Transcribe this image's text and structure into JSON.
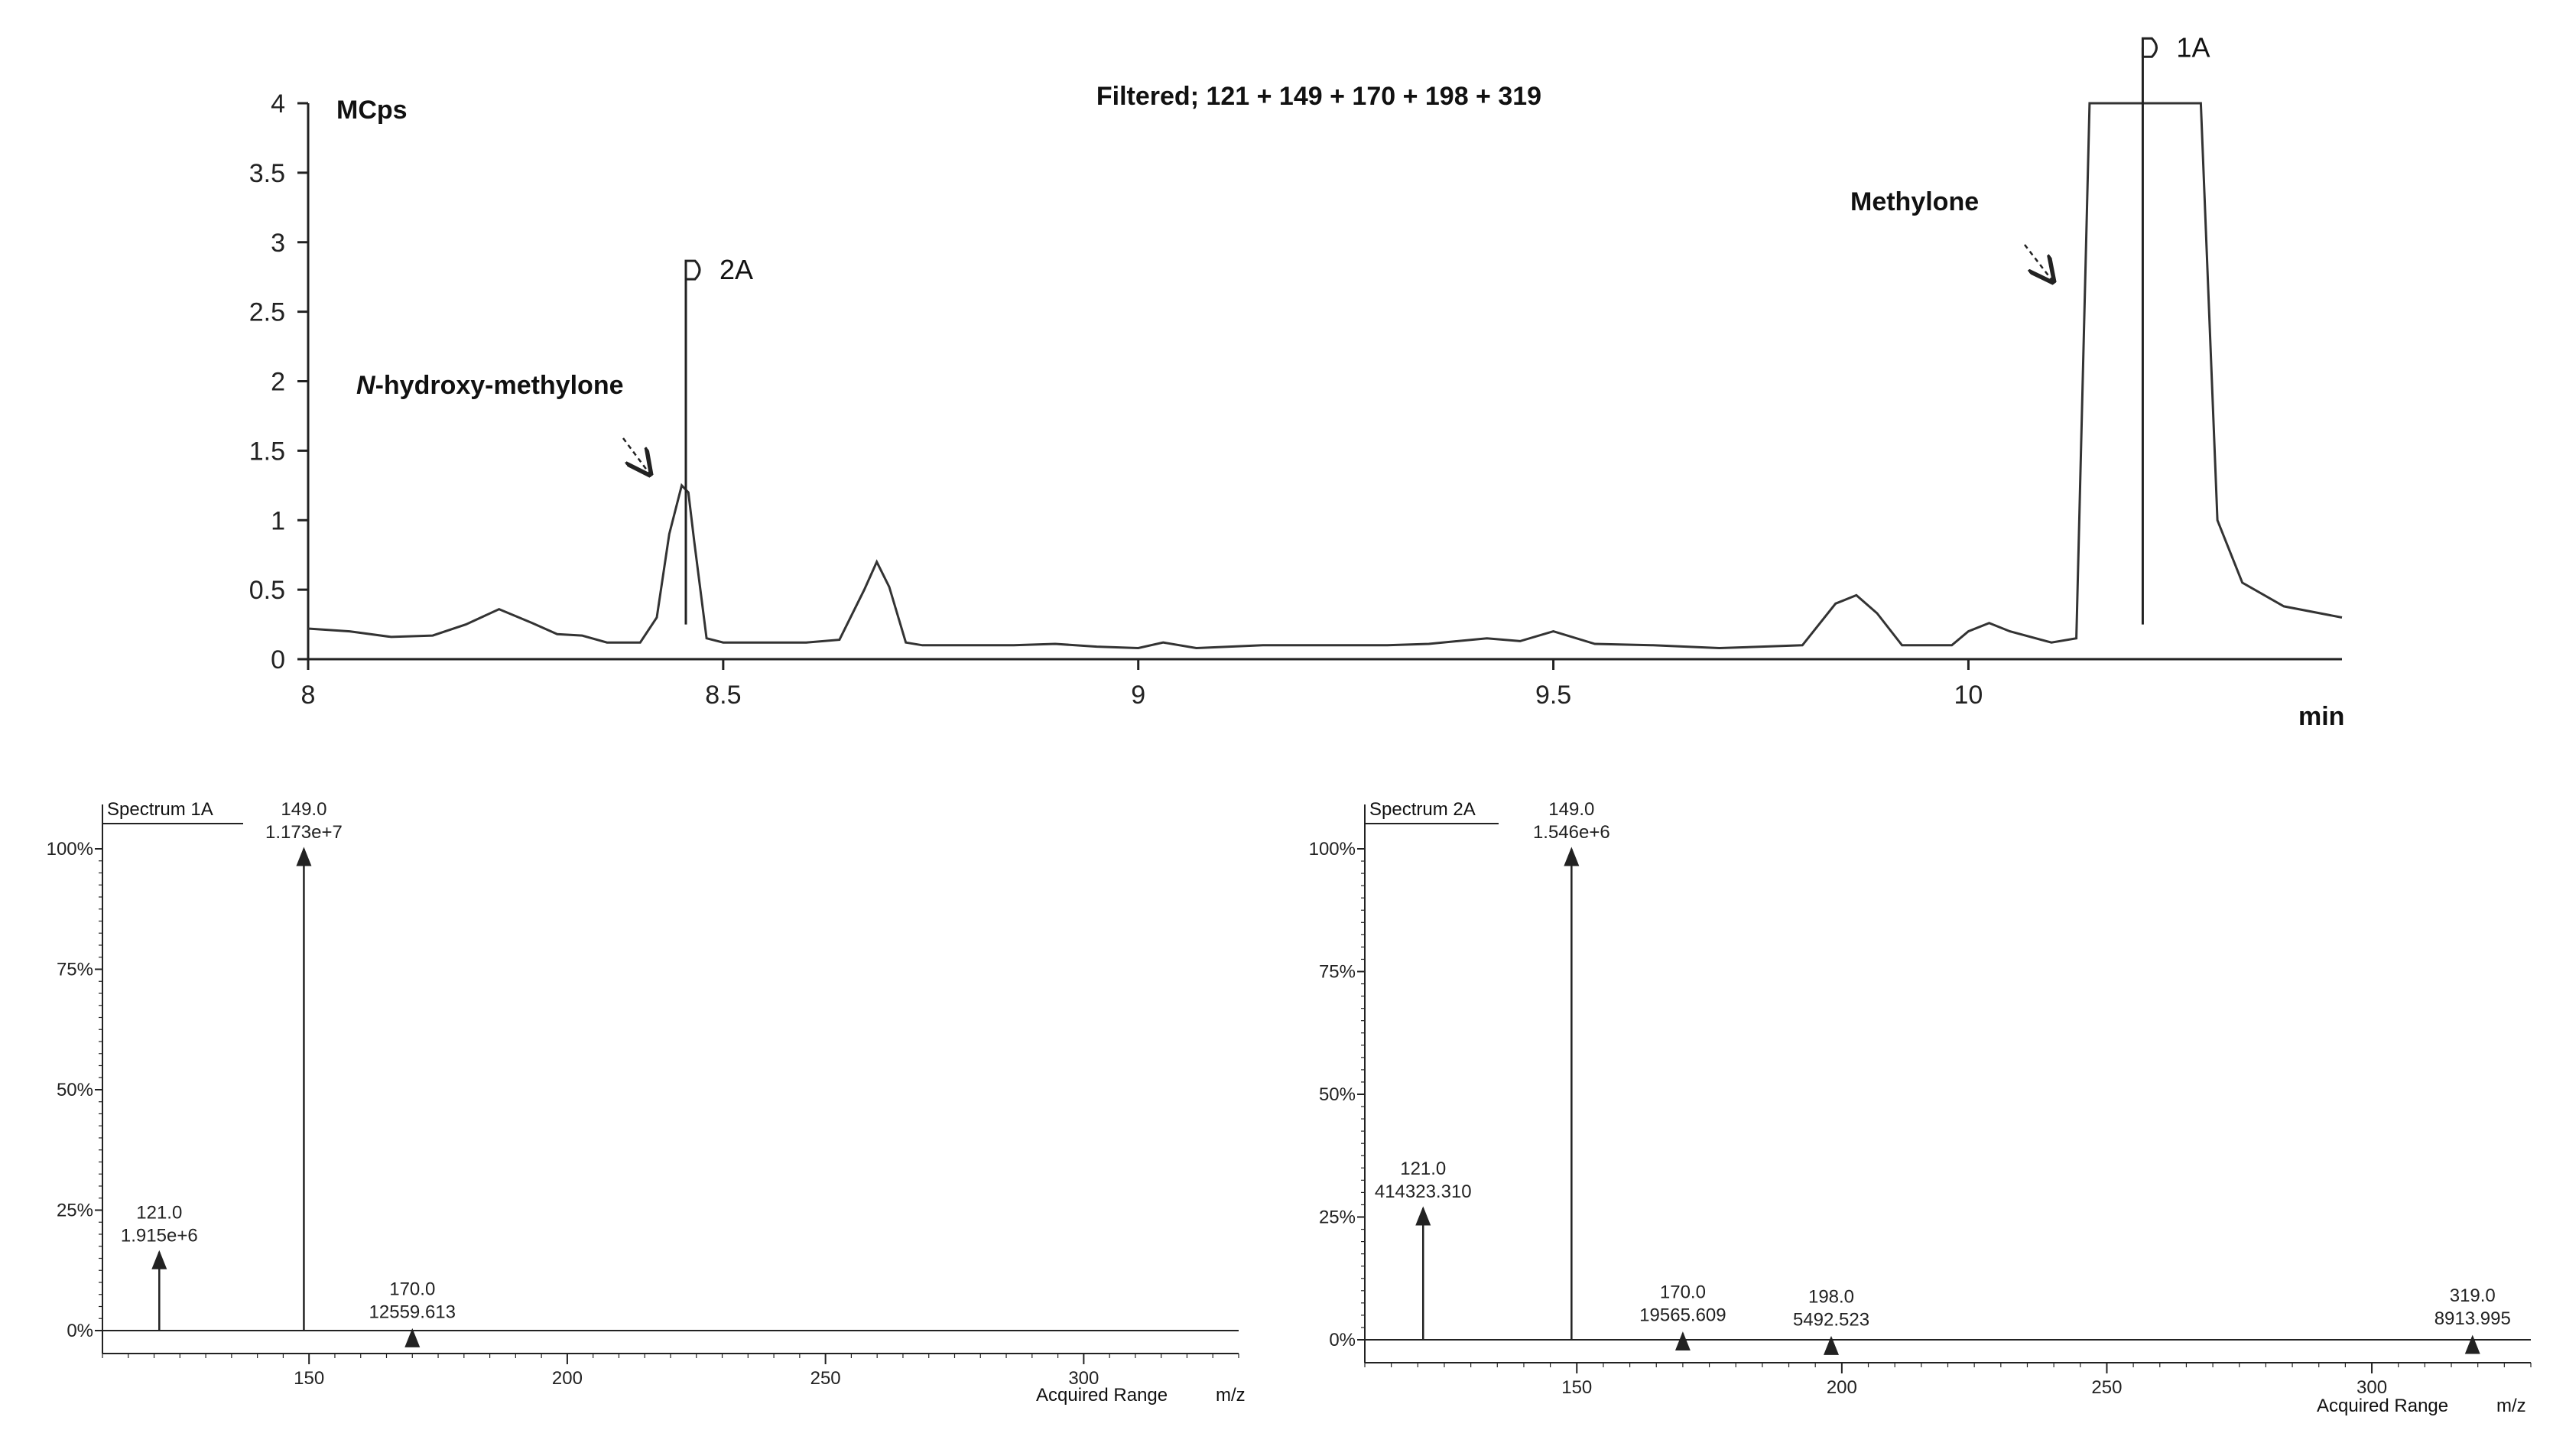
{
  "chart_data": [
    {
      "id": "chromatogram",
      "type": "line",
      "title": "Filtered; 121 + 149 + 170 + 198 + 319",
      "ylabel": "MCps",
      "xlabel": "min",
      "xlim": [
        8,
        10.45
      ],
      "ylim": [
        0,
        4
      ],
      "x_ticks": [
        8,
        8.5,
        9,
        9.5,
        10
      ],
      "x_tick_labels": [
        "8",
        "8.5",
        "9",
        "9.5",
        "10"
      ],
      "y_ticks": [
        0,
        0.5,
        1,
        1.5,
        2,
        2.5,
        3,
        3.5,
        4
      ],
      "y_tick_labels": [
        "0",
        "0.5",
        "1",
        "1.5",
        "2",
        "2.5",
        "3",
        "3.5",
        "4"
      ],
      "series": [
        {
          "x": [
            8.0,
            8.05,
            8.1,
            8.15,
            8.19,
            8.23,
            8.27,
            8.3,
            8.33,
            8.36,
            8.4,
            8.42,
            8.435,
            8.45,
            8.458,
            8.465,
            8.48,
            8.5,
            8.55,
            8.6,
            8.64,
            8.67,
            8.685,
            8.7,
            8.72,
            8.74,
            8.8,
            8.85,
            8.9,
            8.95,
            9.0,
            9.03,
            9.07,
            9.15,
            9.22,
            9.3,
            9.35,
            9.42,
            9.46,
            9.5,
            9.55,
            9.62,
            9.7,
            9.8,
            9.84,
            9.865,
            9.89,
            9.92,
            9.98,
            10.0,
            10.025,
            10.05,
            10.1,
            10.13,
            10.146,
            10.17,
            10.2,
            10.26,
            10.28,
            10.3,
            10.33,
            10.38,
            10.45
          ],
          "y": [
            0.22,
            0.2,
            0.16,
            0.17,
            0.25,
            0.36,
            0.26,
            0.18,
            0.17,
            0.12,
            0.12,
            0.3,
            0.9,
            1.25,
            1.2,
            0.85,
            0.15,
            0.12,
            0.12,
            0.12,
            0.14,
            0.5,
            0.7,
            0.52,
            0.12,
            0.1,
            0.1,
            0.1,
            0.11,
            0.09,
            0.08,
            0.12,
            0.08,
            0.1,
            0.1,
            0.1,
            0.11,
            0.15,
            0.13,
            0.2,
            0.11,
            0.1,
            0.08,
            0.1,
            0.4,
            0.46,
            0.33,
            0.1,
            0.1,
            0.2,
            0.26,
            0.2,
            0.12,
            0.15,
            4.0,
            4.0,
            4.0,
            4.0,
            4.0,
            1.0,
            0.55,
            0.38,
            0.3
          ]
        }
      ],
      "annotations": [
        {
          "label": "N-hydroxy-methylone",
          "emph": "N",
          "rest": "-hydroxy-methylone"
        },
        {
          "label": "Methylone"
        }
      ],
      "markers": [
        {
          "label": "2A",
          "x": 8.455,
          "y_top": 2.8
        },
        {
          "label": "1A",
          "x": 10.21,
          "y_top": 4.4
        }
      ]
    },
    {
      "id": "spectrum-1A",
      "type": "bar",
      "title": "Spectrum 1A",
      "xlabel": "m/z",
      "range_label": "Acquired Range",
      "xlim": [
        110,
        330
      ],
      "ylim": [
        0,
        105
      ],
      "x_ticks": [
        150,
        200,
        250,
        300
      ],
      "x_tick_labels": [
        "150",
        "200",
        "250",
        "300"
      ],
      "y_ticks": [
        0,
        25,
        50,
        75,
        100
      ],
      "y_tick_labels": [
        "0%",
        "25%",
        "50%",
        "75%",
        "100%"
      ],
      "peaks": [
        {
          "mz": 121.0,
          "intensity": 16.3,
          "mz_label": "121.0",
          "int_label": "1.915e+6"
        },
        {
          "mz": 149.0,
          "intensity": 100,
          "mz_label": "149.0",
          "int_label": "1.173e+7"
        },
        {
          "mz": 170.0,
          "intensity": 0.1,
          "mz_label": "170.0",
          "int_label": "12559.613"
        }
      ]
    },
    {
      "id": "spectrum-2A",
      "type": "bar",
      "title": "Spectrum 2A",
      "xlabel": "m/z",
      "range_label": "Acquired Range",
      "xlim": [
        110,
        330
      ],
      "ylim": [
        0,
        105
      ],
      "x_ticks": [
        150,
        200,
        250,
        300
      ],
      "x_tick_labels": [
        "150",
        "200",
        "250",
        "300"
      ],
      "y_ticks": [
        0,
        25,
        50,
        75,
        100
      ],
      "y_tick_labels": [
        "0%",
        "25%",
        "50%",
        "75%",
        "100%"
      ],
      "peaks": [
        {
          "mz": 121.0,
          "intensity": 26.8,
          "mz_label": "121.0",
          "int_label": "414323.310"
        },
        {
          "mz": 149.0,
          "intensity": 100,
          "mz_label": "149.0",
          "int_label": "1.546e+6"
        },
        {
          "mz": 170.0,
          "intensity": 1.3,
          "mz_label": "170.0",
          "int_label": "19565.609"
        },
        {
          "mz": 198.0,
          "intensity": 0.4,
          "mz_label": "198.0",
          "int_label": "5492.523"
        },
        {
          "mz": 319.0,
          "intensity": 0.6,
          "mz_label": "319.0",
          "int_label": "8913.995"
        }
      ]
    }
  ]
}
